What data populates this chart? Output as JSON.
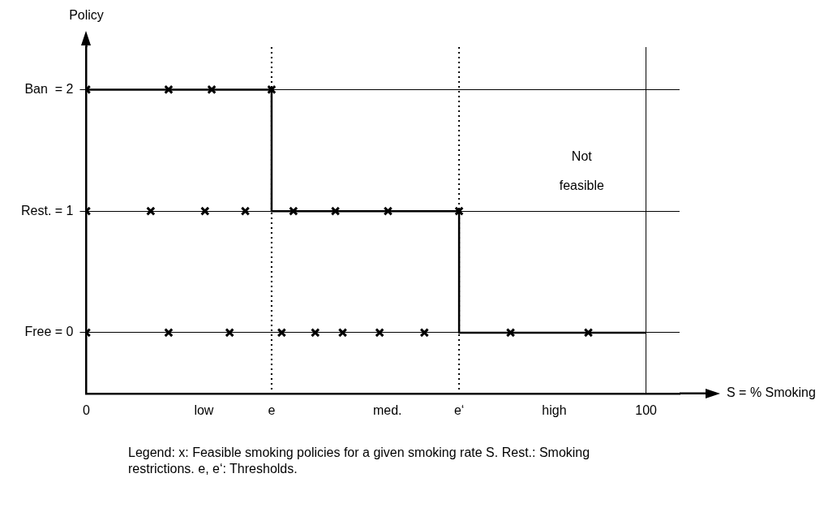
{
  "chart_data": {
    "type": "line",
    "xlabel": "S = % Smoking",
    "ylabel": "Policy",
    "xlim": [
      0,
      106
    ],
    "ylim": [
      -0.5,
      2.35
    ],
    "xticks": [
      {
        "value": 0,
        "label": "0"
      },
      {
        "value": 21,
        "label": "low"
      },
      {
        "value": 33.1,
        "label": "e"
      },
      {
        "value": 53.8,
        "label": "med."
      },
      {
        "value": 66.6,
        "label": "e‘"
      },
      {
        "value": 83.6,
        "label": "high"
      },
      {
        "value": 100,
        "label": "100"
      }
    ],
    "yticks": [
      {
        "value": 0,
        "label": "Free = 0"
      },
      {
        "value": 1,
        "label": "Rest. = 1"
      },
      {
        "value": 2,
        "label": "Ban  = 2"
      }
    ],
    "grid": "y",
    "legend": false,
    "series": [
      {
        "type": "step",
        "color": "#000000",
        "marker": "none",
        "x": [
          0,
          33.1,
          66.6,
          100
        ],
        "values": [
          2,
          1,
          0,
          0
        ]
      },
      {
        "type": "scatter",
        "color": "#000000",
        "marker": "cross",
        "x": [
          0,
          14.7,
          22.4,
          33.1,
          0,
          11.5,
          21.2,
          28.4,
          37.0,
          44.5,
          53.9,
          66.6,
          0,
          14.7,
          25.6,
          34.9,
          40.9,
          45.8,
          52.4,
          60.4,
          75.8,
          89.7
        ],
        "values": [
          2,
          2,
          2,
          2,
          1,
          1,
          1,
          1,
          1,
          1,
          1,
          1,
          0,
          0,
          0,
          0,
          0,
          0,
          0,
          0,
          0,
          0
        ]
      }
    ],
    "ref_lines": [
      {
        "axis": "x",
        "value": 100,
        "color": "#000000",
        "line_style": "solid"
      },
      {
        "axis": "x",
        "value": 33.1,
        "color": "#000000",
        "line_style": "dotted"
      },
      {
        "axis": "x",
        "value": 66.6,
        "color": "#000000",
        "line_style": "dotted"
      }
    ],
    "annotations": [
      "Not feasible",
      "Legend: x: Feasible smoking policies for a given smoking rate S. Rest.: Smoking restrictions. e, e‘: Thresholds."
    ]
  }
}
